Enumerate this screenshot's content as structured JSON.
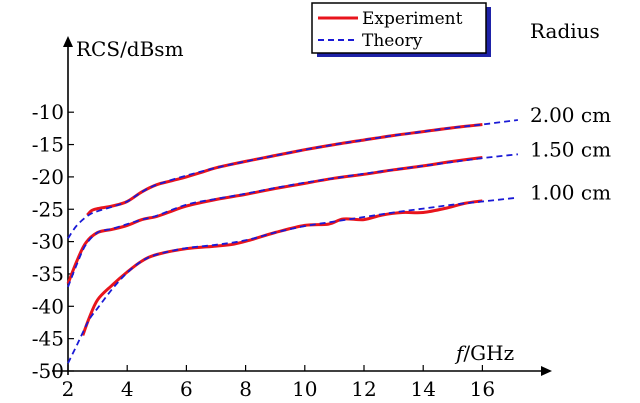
{
  "chart_data": {
    "type": "line",
    "title": "",
    "xlabel": "f/GHz",
    "ylabel": "RCS/dBsm",
    "xlim": [
      2,
      17.5
    ],
    "ylim": [
      -50,
      -7.5
    ],
    "xticks": [
      2,
      4,
      6,
      8,
      10,
      12,
      14,
      16
    ],
    "yticks": [
      -50,
      -45,
      -40,
      -35,
      -30,
      -25,
      -20,
      -15,
      -10
    ],
    "grid": false,
    "legend": {
      "placement": "top-center",
      "entries": [
        {
          "name": "Experiment",
          "color": "#e8141c",
          "style": "solid"
        },
        {
          "name": "Theory",
          "color": "#1a1ad6",
          "style": "dashed"
        }
      ]
    },
    "series_group_title": "Radius",
    "groups": [
      {
        "label": "2.00 cm",
        "theory": {
          "x": [
            2,
            2.3,
            2.7,
            3,
            3.5,
            4,
            4.5,
            5,
            6,
            7,
            8,
            9,
            10,
            11,
            12,
            13,
            14,
            15,
            16,
            17.2
          ],
          "y": [
            -29.5,
            -27.5,
            -25.9,
            -25.3,
            -24.6,
            -23.8,
            -22.3,
            -21.2,
            -19.8,
            -18.6,
            -17.6,
            -16.7,
            -15.8,
            -15.0,
            -14.3,
            -13.6,
            -13.0,
            -12.4,
            -11.9,
            -11.2
          ]
        },
        "experiment": {
          "x": [
            2.65,
            2.8,
            3,
            3.5,
            4,
            4.5,
            5,
            5.5,
            6,
            6.5,
            7,
            8,
            9,
            10,
            11,
            12,
            13,
            14,
            15,
            16
          ],
          "y": [
            -25.9,
            -25.2,
            -24.9,
            -24.5,
            -23.8,
            -22.3,
            -21.2,
            -20.6,
            -20.0,
            -19.3,
            -18.6,
            -17.6,
            -16.7,
            -15.8,
            -15.0,
            -14.3,
            -13.6,
            -13.0,
            -12.4,
            -11.9
          ]
        }
      },
      {
        "label": "1.50 cm",
        "theory": {
          "x": [
            2,
            2.3,
            2.6,
            3,
            3.5,
            4,
            4.5,
            5,
            6,
            7,
            8,
            9,
            10,
            11,
            12,
            13,
            14,
            15,
            16,
            17.2
          ],
          "y": [
            -37.0,
            -33.5,
            -30.5,
            -28.6,
            -28.0,
            -27.3,
            -26.6,
            -26.0,
            -24.3,
            -23.4,
            -22.6,
            -21.7,
            -20.9,
            -20.2,
            -19.5,
            -18.9,
            -18.3,
            -17.7,
            -17.1,
            -16.5
          ]
        },
        "experiment": {
          "x": [
            2,
            2.3,
            2.6,
            3,
            3.5,
            4,
            4.5,
            5,
            5.5,
            6,
            7,
            8,
            9,
            10,
            11,
            12,
            13,
            14,
            15,
            16
          ],
          "y": [
            -36.5,
            -33.0,
            -30.2,
            -28.6,
            -28.1,
            -27.5,
            -26.6,
            -26.1,
            -25.3,
            -24.5,
            -23.5,
            -22.7,
            -21.8,
            -21.0,
            -20.2,
            -19.6,
            -18.9,
            -18.3,
            -17.6,
            -17.0
          ]
        }
      },
      {
        "label": "1.00 cm",
        "theory": {
          "x": [
            2,
            2.3,
            2.7,
            3,
            3.5,
            4,
            4.5,
            5,
            6,
            7,
            8,
            9,
            10,
            11,
            12,
            13,
            14,
            15,
            16,
            17.2
          ],
          "y": [
            -48.8,
            -46.0,
            -42.2,
            -40.3,
            -37.3,
            -34.8,
            -33.0,
            -32.0,
            -31.0,
            -30.5,
            -29.8,
            -28.6,
            -27.6,
            -26.9,
            -26.2,
            -25.5,
            -24.9,
            -24.3,
            -23.8,
            -23.2
          ]
        },
        "experiment": {
          "x": [
            2.5,
            2.7,
            3,
            3.5,
            4,
            4.5,
            5,
            6,
            7,
            7.6,
            8.2,
            9,
            10,
            10.8,
            11.3,
            12,
            12.6,
            13.3,
            14,
            14.8,
            15.4,
            16
          ],
          "y": [
            -44.5,
            -42.0,
            -39.0,
            -36.7,
            -34.7,
            -33.0,
            -32.0,
            -31.1,
            -30.7,
            -30.4,
            -29.7,
            -28.6,
            -27.5,
            -27.3,
            -26.5,
            -26.6,
            -25.9,
            -25.5,
            -25.5,
            -24.8,
            -24.1,
            -23.7
          ]
        }
      }
    ]
  }
}
